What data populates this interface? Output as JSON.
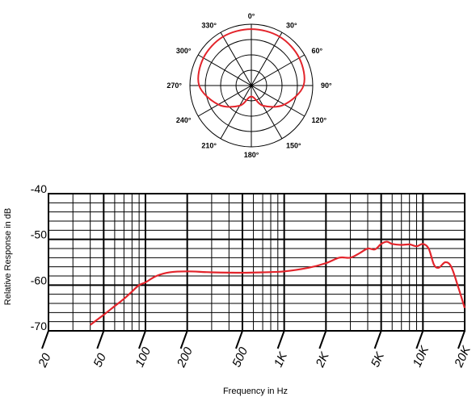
{
  "chart_data": [
    {
      "type": "polar",
      "angle_labels": [
        "0°",
        "30°",
        "60°",
        "90°",
        "120°",
        "150°",
        "180°",
        "210°",
        "240°",
        "270°",
        "300°",
        "330°"
      ],
      "ring_count": 4,
      "series_color": "#e3242b",
      "pattern": "cardioid",
      "response_points": [
        {
          "angle": 0,
          "r": 0.92
        },
        {
          "angle": 30,
          "r": 0.92
        },
        {
          "angle": 60,
          "r": 0.9
        },
        {
          "angle": 90,
          "r": 0.85
        },
        {
          "angle": 120,
          "r": 0.62
        },
        {
          "angle": 150,
          "r": 0.38
        },
        {
          "angle": 180,
          "r": 0.18
        },
        {
          "angle": 210,
          "r": 0.38
        },
        {
          "angle": 240,
          "r": 0.62
        },
        {
          "angle": 270,
          "r": 0.85
        },
        {
          "angle": 300,
          "r": 0.9
        },
        {
          "angle": 330,
          "r": 0.92
        }
      ]
    },
    {
      "type": "line",
      "xlabel": "Frequency in Hz",
      "ylabel": "Relative Response in dB",
      "x_scale": "log",
      "xlim": [
        20,
        20000
      ],
      "ylim": [
        -70,
        -40
      ],
      "y_ticks": [
        {
          "value": -40,
          "label": "-40"
        },
        {
          "value": -50,
          "label": "-50"
        },
        {
          "value": -60,
          "label": "-60"
        },
        {
          "value": -70,
          "label": "-70"
        }
      ],
      "x_ticks": [
        {
          "value": 20,
          "label": "20"
        },
        {
          "value": 50,
          "label": "50"
        },
        {
          "value": 100,
          "label": "100"
        },
        {
          "value": 200,
          "label": "200"
        },
        {
          "value": 500,
          "label": "500"
        },
        {
          "value": 1000,
          "label": "1K"
        },
        {
          "value": 2000,
          "label": "2K"
        },
        {
          "value": 5000,
          "label": "5K"
        },
        {
          "value": 10000,
          "label": "10K"
        },
        {
          "value": 20000,
          "label": "20K"
        }
      ],
      "grid": true,
      "series": [
        {
          "color": "#e3242b",
          "points": [
            {
              "x": 40,
              "y": -68.7
            },
            {
              "x": 50,
              "y": -66.5
            },
            {
              "x": 60,
              "y": -64.6
            },
            {
              "x": 70,
              "y": -63.0
            },
            {
              "x": 80,
              "y": -61.4
            },
            {
              "x": 90,
              "y": -60.0
            },
            {
              "x": 100,
              "y": -59.4
            },
            {
              "x": 120,
              "y": -58.0
            },
            {
              "x": 150,
              "y": -57.2
            },
            {
              "x": 200,
              "y": -57.0
            },
            {
              "x": 300,
              "y": -57.2
            },
            {
              "x": 500,
              "y": -57.3
            },
            {
              "x": 700,
              "y": -57.2
            },
            {
              "x": 1000,
              "y": -57.0
            },
            {
              "x": 1500,
              "y": -56.2
            },
            {
              "x": 2000,
              "y": -55.2
            },
            {
              "x": 2500,
              "y": -54.0
            },
            {
              "x": 3000,
              "y": -54.0
            },
            {
              "x": 3500,
              "y": -53.0
            },
            {
              "x": 4000,
              "y": -52.0
            },
            {
              "x": 4500,
              "y": -52.2
            },
            {
              "x": 5000,
              "y": -51.0
            },
            {
              "x": 5500,
              "y": -50.5
            },
            {
              "x": 6000,
              "y": -51.0
            },
            {
              "x": 7000,
              "y": -51.2
            },
            {
              "x": 8000,
              "y": -51.1
            },
            {
              "x": 9000,
              "y": -51.5
            },
            {
              "x": 10000,
              "y": -51.0
            },
            {
              "x": 11000,
              "y": -52.0
            },
            {
              "x": 12000,
              "y": -55.5
            },
            {
              "x": 13000,
              "y": -56.2
            },
            {
              "x": 14500,
              "y": -55.0
            },
            {
              "x": 16000,
              "y": -56.0
            },
            {
              "x": 18000,
              "y": -60.5
            },
            {
              "x": 20000,
              "y": -65.0
            }
          ]
        }
      ]
    }
  ]
}
